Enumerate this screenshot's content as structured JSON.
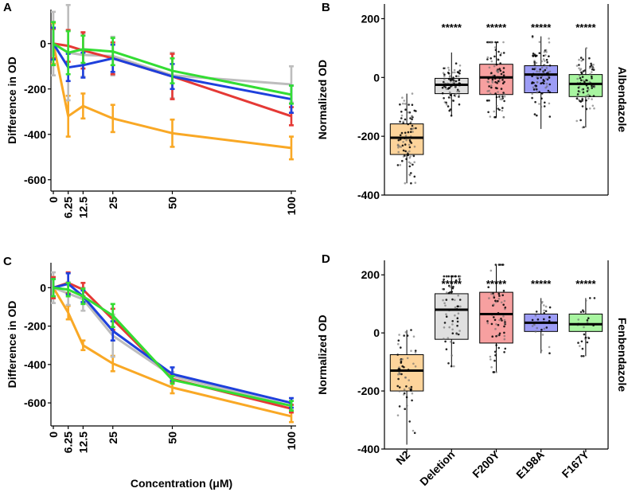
{
  "chart_data": [
    {
      "panel": "A",
      "type": "line",
      "xlabel": "",
      "ylabel": "Difference in OD",
      "x": [
        0,
        6.25,
        12.5,
        25,
        50,
        100
      ],
      "x_tick_labels": [
        "0",
        "6.25",
        "12.5",
        "25",
        "50",
        "100"
      ],
      "ylim": [
        -650,
        150
      ],
      "y_ticks": [
        0,
        -200,
        -400,
        -600
      ],
      "y_tick_labels": [
        "0",
        "-200",
        "-400",
        "-600"
      ],
      "series": [
        {
          "name": "N2",
          "color": "#F9A825",
          "values": [
            0,
            -320,
            -275,
            -330,
            -395,
            -460
          ],
          "errors": [
            90,
            90,
            55,
            60,
            60,
            50
          ]
        },
        {
          "name": "Deletion",
          "color": "#BDBDBD",
          "values": [
            0,
            -40,
            -50,
            -55,
            -140,
            -180
          ],
          "errors": [
            140,
            210,
            95,
            85,
            100,
            80
          ]
        },
        {
          "name": "F200Y",
          "color": "#E53935",
          "values": [
            0,
            -10,
            -30,
            -65,
            -145,
            -320
          ],
          "errors": [
            65,
            70,
            80,
            70,
            100,
            40
          ]
        },
        {
          "name": "E198A",
          "color": "#1E40DC",
          "values": [
            0,
            -105,
            -95,
            -65,
            -145,
            -245
          ],
          "errors": [
            70,
            60,
            55,
            60,
            55,
            60
          ]
        },
        {
          "name": "F167Y",
          "color": "#33DD33",
          "values": [
            0,
            -40,
            -25,
            -35,
            -120,
            -225
          ],
          "errors": [
            95,
            95,
            60,
            60,
            55,
            40
          ]
        }
      ]
    },
    {
      "panel": "B",
      "type": "box",
      "ylabel": "Normalized OD",
      "strip_label": "Albendazole",
      "ylim": [
        -400,
        250
      ],
      "y_ticks": [
        200,
        0,
        -200,
        -400
      ],
      "y_tick_labels": [
        "200",
        "0",
        "-200",
        "-400"
      ],
      "significance": [
        "",
        "*****",
        "*****",
        "*****",
        "*****"
      ],
      "groups": [
        {
          "name": "N2",
          "fill": "#FDD49B",
          "q1": -262,
          "median": -205,
          "q3": -158,
          "min": -360,
          "max": -55,
          "points": 90
        },
        {
          "name": "Deletion",
          "fill": "#E0E0E0",
          "q1": -55,
          "median": -25,
          "q3": -3,
          "min": -130,
          "max": 85,
          "points": 90
        },
        {
          "name": "F200Y",
          "fill": "#F7A0A0",
          "q1": -58,
          "median": 0,
          "q3": 45,
          "min": -135,
          "max": 120,
          "points": 100
        },
        {
          "name": "E198A",
          "fill": "#9C9CF5",
          "q1": -52,
          "median": 10,
          "q3": 40,
          "min": -175,
          "max": 140,
          "points": 100
        },
        {
          "name": "F167Y",
          "fill": "#A8F5A0",
          "q1": -65,
          "median": -22,
          "q3": 10,
          "min": -170,
          "max": 100,
          "points": 90
        }
      ]
    },
    {
      "panel": "C",
      "type": "line",
      "xlabel": "Concentration (μM)",
      "ylabel": "Difference in OD",
      "x": [
        0,
        6.25,
        12.5,
        25,
        50,
        100
      ],
      "x_tick_labels": [
        "0",
        "6.25",
        "12.5",
        "25",
        "50",
        "100"
      ],
      "ylim": [
        -720,
        130
      ],
      "y_ticks": [
        0,
        -200,
        -400,
        -600
      ],
      "y_tick_labels": [
        "0",
        "-200",
        "-400",
        "-600"
      ],
      "series": [
        {
          "name": "N2",
          "color": "#F9A825",
          "values": [
            0,
            -130,
            -300,
            -395,
            -520,
            -670
          ],
          "errors": [
            55,
            35,
            25,
            40,
            30,
            30
          ]
        },
        {
          "name": "Deletion",
          "color": "#BDBDBD",
          "values": [
            0,
            -30,
            -60,
            -250,
            -460,
            -615
          ],
          "errors": [
            80,
            60,
            60,
            110,
            20,
            25
          ]
        },
        {
          "name": "F200Y",
          "color": "#E53935",
          "values": [
            0,
            25,
            -10,
            -165,
            -475,
            -630
          ],
          "errors": [
            55,
            55,
            35,
            55,
            20,
            20
          ]
        },
        {
          "name": "E198A",
          "color": "#1E40DC",
          "values": [
            0,
            20,
            -45,
            -225,
            -450,
            -600
          ],
          "errors": [
            45,
            55,
            30,
            50,
            35,
            25
          ]
        },
        {
          "name": "F167Y",
          "color": "#33DD33",
          "values": [
            0,
            -10,
            -45,
            -145,
            -480,
            -615
          ],
          "errors": [
            45,
            35,
            40,
            60,
            20,
            25
          ]
        }
      ]
    },
    {
      "panel": "D",
      "type": "box",
      "ylabel": "Normalized OD",
      "strip_label": "Fenbendazole",
      "ylim": [
        -400,
        250
      ],
      "y_ticks": [
        200,
        0,
        -200,
        -400
      ],
      "y_tick_labels": [
        "200",
        "0",
        "-200",
        "-400"
      ],
      "categories": [
        "N2",
        "Deletion",
        "F200Y",
        "E198A",
        "F167Y"
      ],
      "significance": [
        "",
        "*****",
        "*****",
        "*****",
        "*****"
      ],
      "groups": [
        {
          "name": "N2",
          "fill": "#FDD49B",
          "q1": -200,
          "median": -130,
          "q3": -75,
          "min": -385,
          "max": 10,
          "points": 60
        },
        {
          "name": "Deletion",
          "fill": "#E0E0E0",
          "q1": -22,
          "median": 80,
          "q3": 135,
          "min": -115,
          "max": 195,
          "points": 70
        },
        {
          "name": "F200Y",
          "fill": "#F7A0A0",
          "q1": -35,
          "median": 65,
          "q3": 140,
          "min": -135,
          "max": 235,
          "points": 70
        },
        {
          "name": "E198A",
          "fill": "#9C9CF5",
          "q1": 5,
          "median": 35,
          "q3": 65,
          "min": -70,
          "max": 120,
          "points": 30
        },
        {
          "name": "F167Y",
          "fill": "#A8F5A0",
          "q1": 5,
          "median": 30,
          "q3": 65,
          "min": -80,
          "max": 120,
          "points": 30
        }
      ]
    }
  ]
}
